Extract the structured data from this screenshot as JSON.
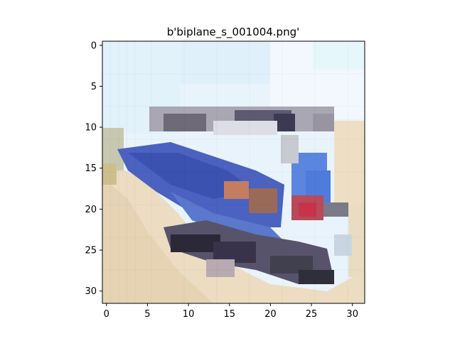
{
  "figure": {
    "title": "b'biplane_s_001004.png'",
    "x_ticks": [
      "0",
      "5",
      "10",
      "15",
      "20",
      "25",
      "30"
    ],
    "y_ticks": [
      "0",
      "5",
      "10",
      "15",
      "20",
      "25",
      "30"
    ],
    "image_grid_size": [
      32,
      32
    ],
    "x_range": [
      -0.5,
      31.5
    ],
    "y_range": [
      31.5,
      -0.5
    ],
    "image_description_icon": "pixelated-biplane-photo"
  }
}
